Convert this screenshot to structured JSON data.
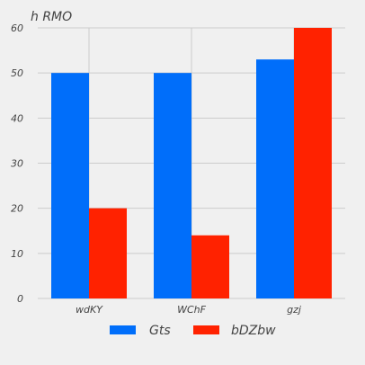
{
  "chart_data": {
    "type": "bar",
    "title": "h RMO",
    "xlabel": "",
    "ylabel": "",
    "categories": [
      "wdKY",
      "WChF",
      "gzj"
    ],
    "series": [
      {
        "name": "Gts",
        "values": [
          50,
          50,
          53
        ],
        "color": "#006efa"
      },
      {
        "name": "bDZbw",
        "values": [
          20,
          14,
          60
        ],
        "color": "#ff2200"
      }
    ],
    "ylim": [
      0,
      60
    ],
    "yticks": [
      0,
      10,
      20,
      30,
      40,
      50,
      60
    ],
    "grid": true,
    "legend_position": "bottom-center"
  }
}
